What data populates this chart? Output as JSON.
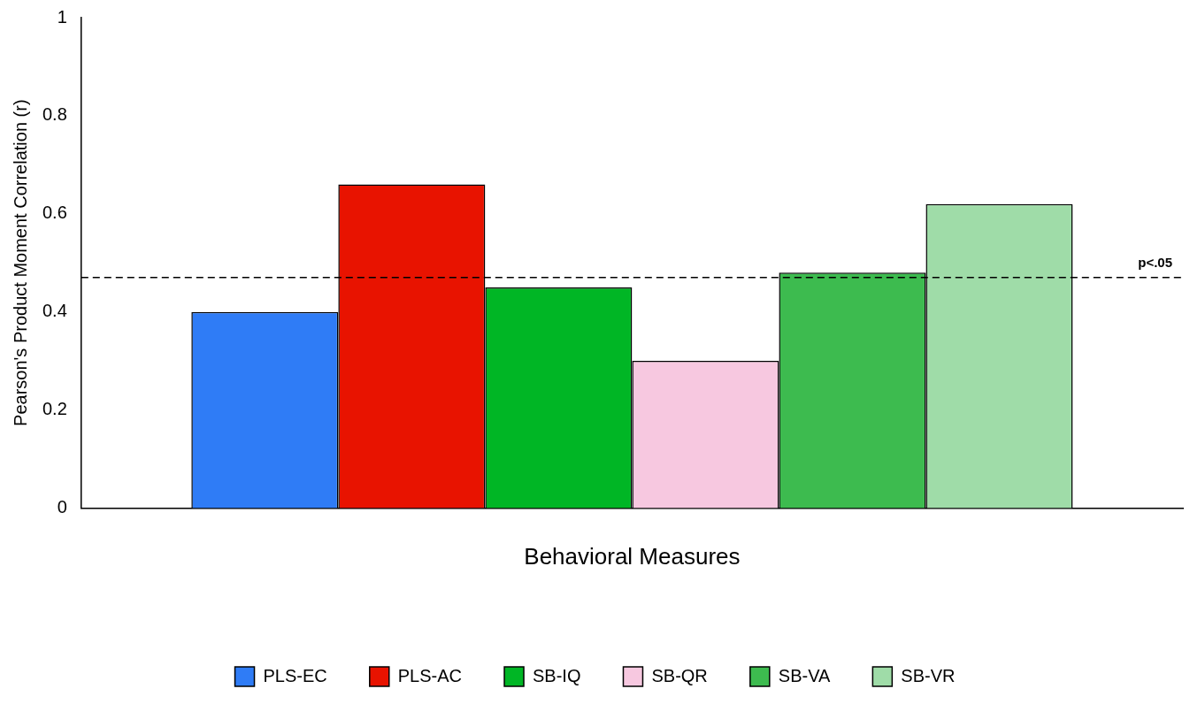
{
  "chart_data": {
    "type": "bar",
    "xlabel": "Behavioral Measures",
    "ylabel": "Pearson's Product Moment Correlation (r)",
    "categories": [
      null
    ],
    "series": [
      {
        "name": "PLS-EC",
        "color": "#2f7cf6",
        "values": [
          0.4
        ]
      },
      {
        "name": "PLS-AC",
        "color": "#e81300",
        "values": [
          0.66
        ]
      },
      {
        "name": "SB-IQ",
        "color": "#00b625",
        "values": [
          0.45
        ]
      },
      {
        "name": "SB-QR",
        "color": "#f7c8e0",
        "values": [
          0.3
        ]
      },
      {
        "name": "SB-VA",
        "color": "#3dbb4f",
        "values": [
          0.48
        ]
      },
      {
        "name": "SB-VR",
        "color": "#9fdca8",
        "values": [
          0.62
        ]
      }
    ],
    "ylim": [
      0,
      1
    ],
    "yticks": [
      0,
      0.2,
      0.4,
      0.6,
      0.8,
      1
    ],
    "ref_lines": [
      {
        "axis": "y",
        "value": 0.47,
        "label": "p<.05",
        "line_style": "dashed"
      }
    ],
    "grid": false,
    "legend": "bottom"
  }
}
